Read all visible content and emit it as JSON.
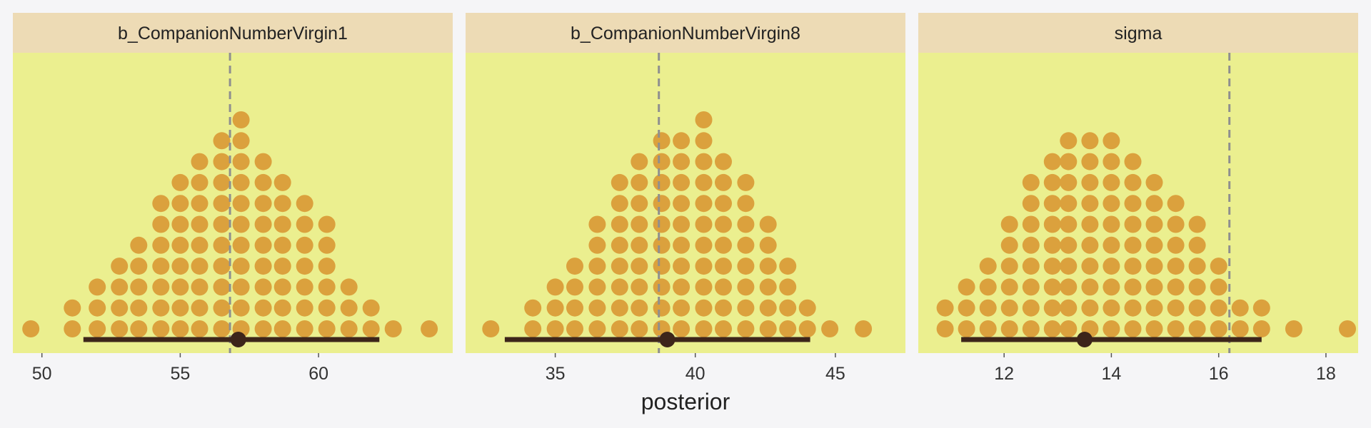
{
  "chart_data": {
    "type": "dotplot",
    "xlabel": "posterior",
    "colors": {
      "page_background": "#f5f5f7",
      "panel_background": "#ebef8f",
      "strip_background": "#eddbb5",
      "dot_fill": "#dba13d",
      "interval_line": "#3d251a",
      "point_estimate": "#3d251a",
      "reference_line": "#8f8f8f"
    },
    "panels": [
      {
        "title": "b_CompanionNumberVirgin1",
        "xlim": [
          48.95,
          64.85
        ],
        "ticks": [
          50,
          55,
          60
        ],
        "dot_x": [
          49.6,
          51.1,
          52.0,
          52.8,
          53.5,
          54.3,
          55.0,
          55.7,
          56.5,
          57.2,
          58.0,
          58.7,
          59.5,
          60.3,
          61.1,
          61.9,
          62.7,
          64.0
        ],
        "dot_counts": [
          1,
          2,
          3,
          4,
          5,
          7,
          8,
          9,
          10,
          11,
          9,
          8,
          7,
          6,
          3,
          2,
          1,
          1
        ],
        "interval": [
          51.5,
          62.2
        ],
        "point_estimate": 57.1,
        "reference_line": 56.8
      },
      {
        "title": "b_CompanionNumberVirgin8",
        "xlim": [
          31.8,
          47.5
        ],
        "ticks": [
          35,
          40,
          45
        ],
        "dot_x": [
          32.7,
          34.2,
          35.0,
          35.7,
          36.5,
          37.3,
          38.0,
          38.8,
          39.5,
          40.3,
          41.0,
          41.8,
          42.6,
          43.3,
          44.0,
          44.8,
          46.0
        ],
        "dot_counts": [
          1,
          2,
          3,
          4,
          6,
          8,
          9,
          10,
          10,
          11,
          9,
          8,
          6,
          4,
          2,
          1,
          1
        ],
        "interval": [
          33.2,
          44.1
        ],
        "point_estimate": 39.0,
        "reference_line": 38.7
      },
      {
        "title": "sigma",
        "xlim": [
          10.4,
          18.6
        ],
        "ticks": [
          12,
          14,
          16,
          18
        ],
        "dot_x": [
          10.9,
          11.3,
          11.7,
          12.1,
          12.5,
          12.9,
          13.2,
          13.6,
          14.0,
          14.4,
          14.8,
          15.2,
          15.6,
          16.0,
          16.4,
          16.8,
          17.4,
          18.4
        ],
        "dot_counts": [
          2,
          3,
          4,
          6,
          8,
          9,
          10,
          10,
          10,
          9,
          8,
          7,
          6,
          4,
          2,
          2,
          1,
          1
        ],
        "interval": [
          11.2,
          16.8
        ],
        "point_estimate": 13.5,
        "reference_line": 16.2
      }
    ]
  }
}
